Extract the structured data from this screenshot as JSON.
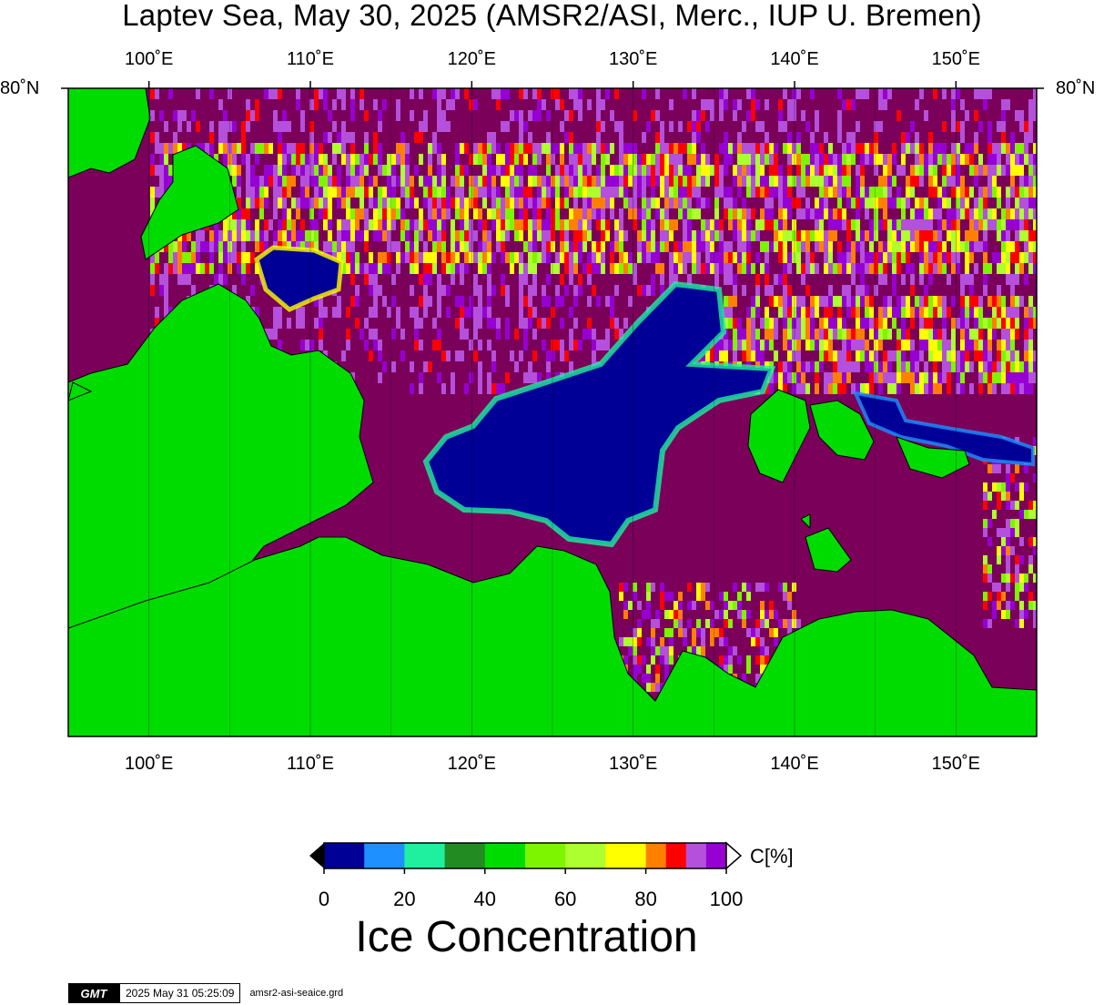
{
  "title": "Laptev Sea, May 30, 2025 (AMSR2/ASI, Merc., IUP U. Bremen)",
  "map": {
    "lon_range": [
      95,
      155
    ],
    "lon_ticks": [
      100,
      110,
      120,
      130,
      140,
      150
    ],
    "lon_tick_labels": [
      "100˚E",
      "110˚E",
      "120˚E",
      "130˚E",
      "140˚E",
      "150˚E"
    ],
    "lat_label_left": "80˚N",
    "lat_label_right": "80˚N",
    "land_color": "#00dc00",
    "open_water_color": "#000096",
    "dominant_ice_color": "#7a005a"
  },
  "colorbar": {
    "unit": "C[%]",
    "tick_labels": [
      "0",
      "20",
      "40",
      "60",
      "80",
      "100"
    ],
    "bins": [
      {
        "from": 0,
        "to": 10,
        "color": "#000096"
      },
      {
        "from": 10,
        "to": 20,
        "color": "#1e90ff"
      },
      {
        "from": 20,
        "to": 30,
        "color": "#1ef0a0"
      },
      {
        "from": 30,
        "to": 40,
        "color": "#228b22"
      },
      {
        "from": 40,
        "to": 50,
        "color": "#00dc00"
      },
      {
        "from": 50,
        "to": 60,
        "color": "#7ef500"
      },
      {
        "from": 60,
        "to": 70,
        "color": "#adff2f"
      },
      {
        "from": 70,
        "to": 80,
        "color": "#ffff00"
      },
      {
        "from": 80,
        "to": 85,
        "color": "#ff8000"
      },
      {
        "from": 85,
        "to": 90,
        "color": "#ff0000"
      },
      {
        "from": 90,
        "to": 95,
        "color": "#b450dc"
      },
      {
        "from": 95,
        "to": 100,
        "color": "#9600d2"
      }
    ],
    "title": "Ice Concentration"
  },
  "footer": {
    "logo": "GMT",
    "timestamp": "2025 May 31 05:25:09",
    "filename": "amsr2-asi-seaice.grd"
  }
}
